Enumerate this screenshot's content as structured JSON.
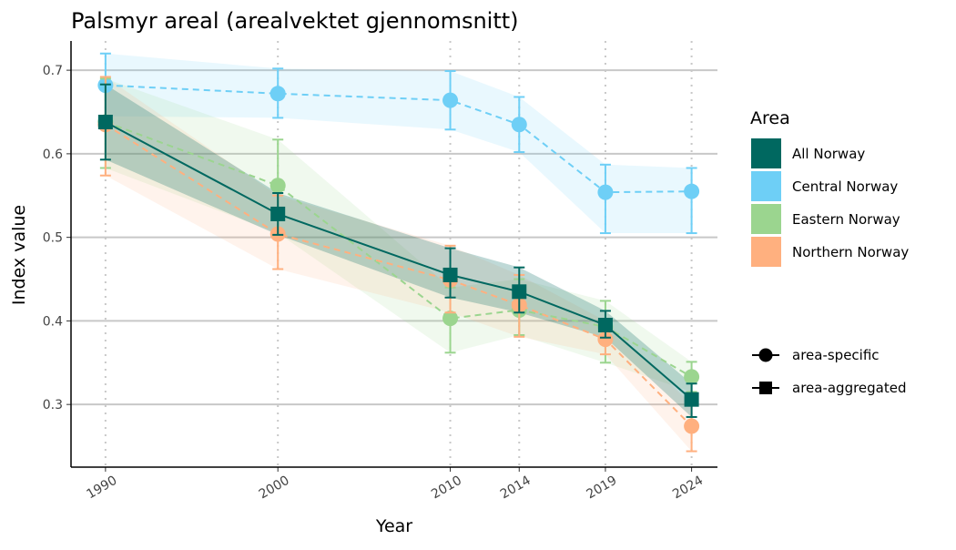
{
  "chart_data": {
    "type": "line",
    "title": "Palsmyr areal (arealvektet gjennomsnitt)",
    "xlabel": "Year",
    "ylabel": "Index value",
    "x": [
      1990,
      2000,
      2010,
      2014,
      2019,
      2024
    ],
    "x_tick_labels": [
      "1990",
      "2000",
      "2010",
      "2014",
      "2019",
      "2024"
    ],
    "y_ticks": [
      0.3,
      0.4,
      0.5,
      0.6,
      0.7
    ],
    "y_tick_labels": [
      "0.3",
      "0.4",
      "0.5",
      "0.6",
      "0.7"
    ],
    "ylim": [
      0.225,
      0.735
    ],
    "xlim": [
      1988,
      2025.5
    ],
    "grid": "horizontal major, dotted vertical at years",
    "legend_title": "Area",
    "legend_position": "right",
    "series": [
      {
        "name": "All Norway",
        "color": "#006860",
        "shape": "square",
        "dashed": false,
        "values": [
          0.638,
          0.528,
          0.455,
          0.435,
          0.395,
          0.306
        ],
        "lower": [
          0.593,
          0.503,
          0.428,
          0.41,
          0.38,
          0.285
        ],
        "upper": [
          0.683,
          0.553,
          0.487,
          0.464,
          0.412,
          0.325
        ]
      },
      {
        "name": "Central Norway",
        "color": "#6ECFF6",
        "shape": "circle",
        "dashed": true,
        "values": [
          0.682,
          0.672,
          0.664,
          0.635,
          0.554,
          0.555
        ],
        "lower": [
          0.645,
          0.643,
          0.629,
          0.602,
          0.505,
          0.505
        ],
        "upper": [
          0.72,
          0.702,
          0.699,
          0.668,
          0.587,
          0.583
        ]
      },
      {
        "name": "Eastern Norway",
        "color": "#9BD58F",
        "shape": "circle",
        "dashed": true,
        "values": [
          0.638,
          0.562,
          0.403,
          0.413,
          0.393,
          0.333
        ],
        "lower": [
          0.583,
          0.505,
          0.362,
          0.383,
          0.35,
          0.315
        ],
        "upper": [
          0.69,
          0.617,
          0.44,
          0.45,
          0.424,
          0.351
        ]
      },
      {
        "name": "Northern Norway",
        "color": "#FFB07F",
        "shape": "circle",
        "dashed": true,
        "values": [
          0.635,
          0.504,
          0.449,
          0.419,
          0.378,
          0.274
        ],
        "lower": [
          0.574,
          0.462,
          0.41,
          0.381,
          0.36,
          0.244
        ],
        "upper": [
          0.692,
          0.55,
          0.49,
          0.455,
          0.4,
          0.3
        ]
      }
    ],
    "shape_legend": [
      {
        "label": "area-specific",
        "shape": "circle"
      },
      {
        "label": "area-aggregated",
        "shape": "square"
      }
    ]
  }
}
